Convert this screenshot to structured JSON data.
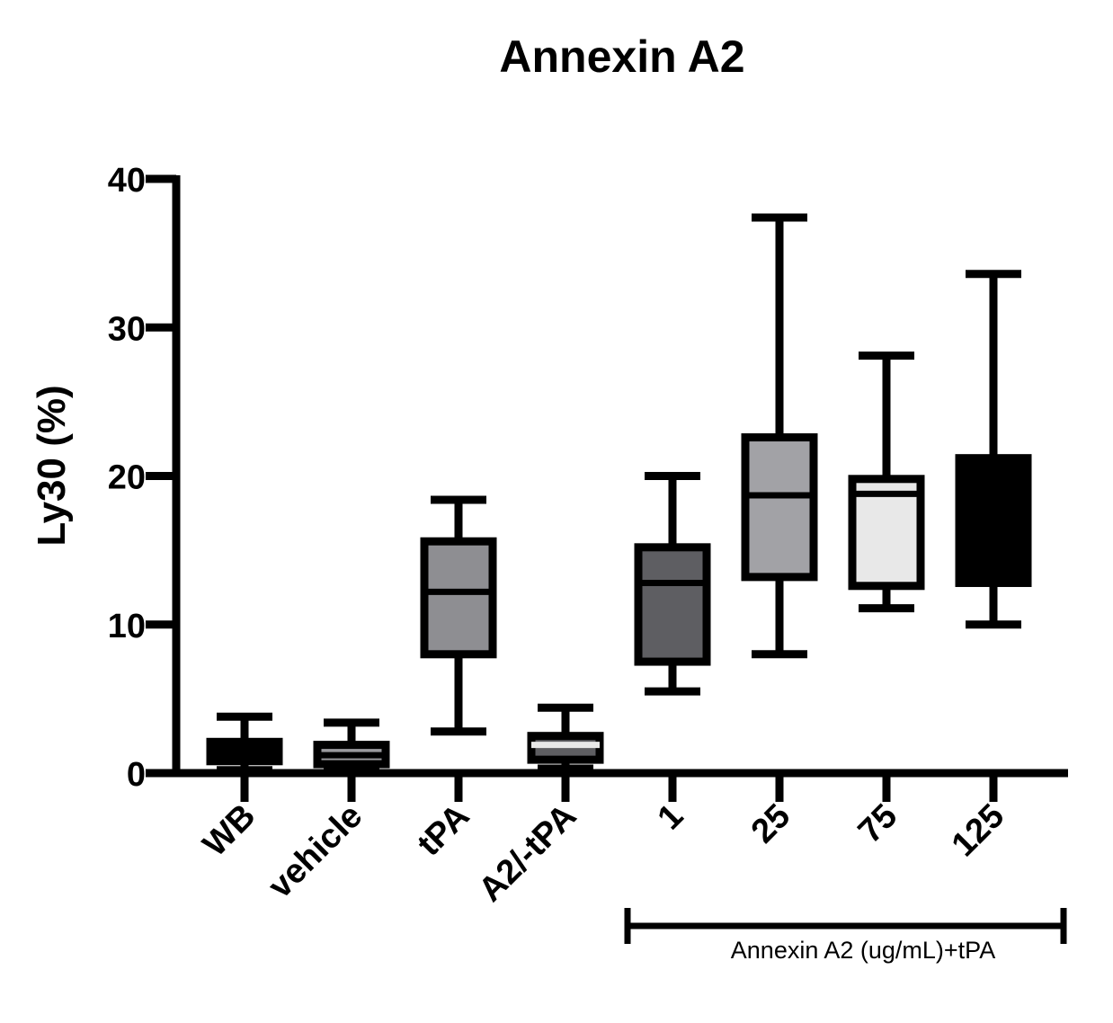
{
  "chart_data": {
    "type": "box",
    "title": "Annexin A2",
    "ylabel": "Ly30 (%)",
    "xlabel": "",
    "ylim": [
      0,
      40
    ],
    "yticks": [
      0,
      10,
      20,
      30,
      40
    ],
    "grid": false,
    "categories": [
      "WB",
      "vehicle",
      "tPA",
      "A2/-tPA",
      "1",
      "25",
      "75",
      "125"
    ],
    "boxes": [
      {
        "category": "WB",
        "min": 0.2,
        "q1": 0.8,
        "median": 0.9,
        "q3": 2.1,
        "max": 3.8,
        "fill": "#000000",
        "median_color": "#000000"
      },
      {
        "category": "vehicle",
        "min": 0.3,
        "q1": 0.6,
        "median": 1.2,
        "q3": 1.9,
        "max": 3.4,
        "fill": "#9a9a9e",
        "median_color": "#000000"
      },
      {
        "category": "tPA",
        "min": 2.8,
        "q1": 8.0,
        "median": 12.2,
        "q3": 15.6,
        "max": 18.4,
        "fill": "#8e8e92",
        "median_color": "#000000"
      },
      {
        "category": "A2/-tPA",
        "min": 0.3,
        "q1": 0.9,
        "median": 1.9,
        "q3": 2.5,
        "max": 4.4,
        "fill": "#5e5e62",
        "median_color": "#e8e8e8"
      },
      {
        "category": "1",
        "min": 5.5,
        "q1": 7.5,
        "median": 12.8,
        "q3": 15.2,
        "max": 20.0,
        "fill": "#5e5e62",
        "median_color": "#000000"
      },
      {
        "category": "25",
        "min": 8.0,
        "q1": 13.2,
        "median": 18.7,
        "q3": 22.6,
        "max": 37.4,
        "fill": "#a2a2a6",
        "median_color": "#000000"
      },
      {
        "category": "75",
        "min": 11.1,
        "q1": 12.6,
        "median": 18.8,
        "q3": 19.8,
        "max": 28.1,
        "fill": "#e8e8e8",
        "median_color": "#000000"
      },
      {
        "category": "125",
        "min": 10.0,
        "q1": 12.8,
        "median": 19.5,
        "q3": 21.2,
        "max": 33.6,
        "fill": "#000000",
        "median_color": "#000000"
      }
    ],
    "bracket": {
      "label": "Annexin A2 (ug/mL)+tPA",
      "from": "1",
      "to": "125"
    }
  }
}
